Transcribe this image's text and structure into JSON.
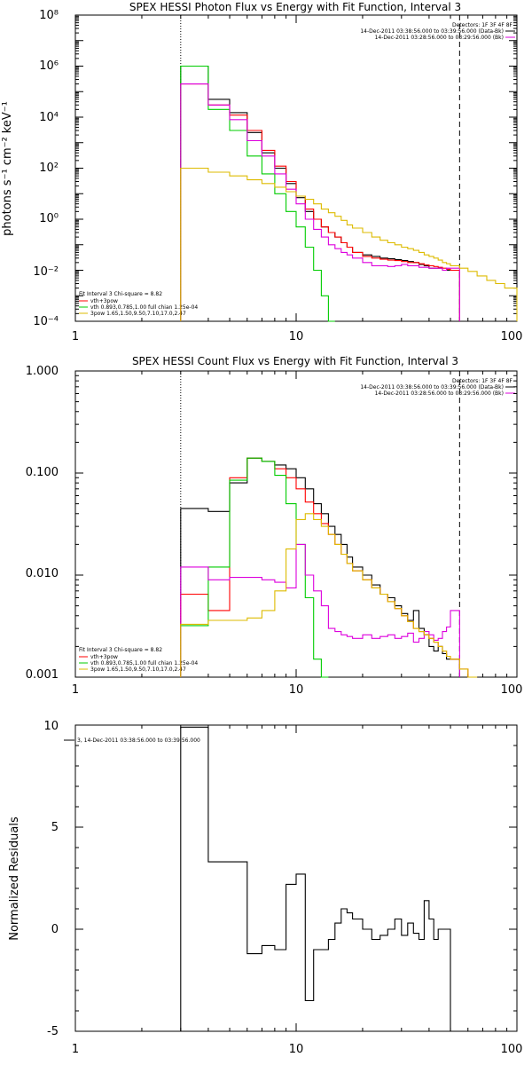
{
  "chart_data": [
    {
      "type": "line",
      "title": "SPEX HESSI Photon Flux vs Energy with Fit Function, Interval 3",
      "ylabel": "photons s⁻¹ cm⁻² keV⁻¹",
      "xlabel": "",
      "xscale": "log",
      "yscale": "log",
      "xlim": [
        1,
        100
      ],
      "ylim": [
        0.0001,
        100000000
      ],
      "x_tick_labels": [
        "1",
        "10",
        "100"
      ],
      "y_tick_labels": [
        "10⁻⁴",
        "10⁻²",
        "10⁰",
        "10²",
        "10⁴",
        "10⁶",
        "10⁸"
      ],
      "vlines": [
        {
          "x": 3,
          "style": "dotted"
        },
        {
          "x": 55,
          "style": "dashed"
        }
      ],
      "header_text": [
        "Detectors: 1F 3F 4F 8F",
        "14-Dec-2011 03:38:56.000 to 03:39:56.000 (Data-Bk)",
        "14-Dec-2011 03:28:56.000 to 03:29:56.000 (Bk)"
      ],
      "legend_text": [
        "Fit Interval 3   Chi-square = 8.82",
        "vth+3pow",
        "vth 0.893,0.785,1.00  full chian 1.25e-04",
        "3pow 1.65,1.50,9.50,7.10,17.0,2.47"
      ],
      "bin_edges": [
        3,
        4,
        5,
        6,
        7,
        8,
        9,
        10,
        11,
        12,
        13,
        14,
        15,
        16,
        17,
        18,
        20,
        22,
        24,
        26,
        28,
        30,
        32,
        34,
        36,
        38,
        40,
        42,
        44,
        46,
        48,
        50,
        55,
        60,
        66,
        73,
        80,
        88,
        100
      ],
      "series": [
        {
          "color": "#000000",
          "values": [
            1000000,
            50000,
            15000,
            2500,
            400,
            100,
            25,
            7,
            2,
            1,
            0.5,
            0.3,
            0.2,
            0.12,
            0.08,
            0.05,
            0.04,
            0.035,
            0.03,
            0.028,
            0.026,
            0.024,
            0.022,
            0.02,
            0.017,
            0.015,
            0.012,
            0.012,
            0.012,
            0.01,
            0.01,
            0.01
          ]
        },
        {
          "color": "#ff0000",
          "values": [
            200000,
            30000,
            12000,
            3000,
            500,
            120,
            30,
            8,
            2.5,
            1,
            0.5,
            0.3,
            0.2,
            0.12,
            0.08,
            0.05,
            0.035,
            0.03,
            0.027,
            0.025,
            0.024,
            0.022,
            0.02,
            0.02,
            0.018,
            0.016,
            0.015,
            0.014,
            0.013,
            0.012,
            0.011,
            0.01
          ]
        },
        {
          "color": "#00cc00",
          "values": [
            1000000,
            20000,
            3000,
            300,
            60,
            10,
            2,
            0.5,
            0.08,
            0.01,
            0.001,
            0.0001
          ]
        },
        {
          "color": "#dd00dd",
          "values": [
            200000,
            30000,
            8000,
            1200,
            300,
            60,
            15,
            4,
            1,
            0.4,
            0.2,
            0.1,
            0.07,
            0.05,
            0.04,
            0.03,
            0.02,
            0.015,
            0.015,
            0.014,
            0.015,
            0.017,
            0.015,
            0.015,
            0.013,
            0.013,
            0.012,
            0.012,
            0.012,
            0.01,
            0.012,
            0.012
          ]
        },
        {
          "color": "#ddbb00",
          "values": [
            100,
            70,
            50,
            35,
            25,
            18,
            12,
            8,
            6,
            4,
            2.5,
            1.8,
            1.3,
            0.9,
            0.6,
            0.45,
            0.3,
            0.2,
            0.15,
            0.12,
            0.1,
            0.08,
            0.07,
            0.06,
            0.05,
            0.04,
            0.035,
            0.03,
            0.025,
            0.02,
            0.018,
            0.015,
            0.012,
            0.009,
            0.006,
            0.004,
            0.003,
            0.002
          ]
        }
      ]
    },
    {
      "type": "line",
      "title": "SPEX HESSI Count Flux vs Energy with Fit Function, Interval 3",
      "ylabel": "",
      "xlabel": "",
      "xscale": "log",
      "yscale": "log",
      "xlim": [
        1,
        100
      ],
      "ylim": [
        0.001,
        1
      ],
      "x_tick_labels": [
        "1",
        "10",
        "100"
      ],
      "y_tick_labels": [
        "0.001",
        "0.010",
        "0.100",
        "1.000"
      ],
      "vlines": [
        {
          "x": 3,
          "style": "dotted"
        },
        {
          "x": 55,
          "style": "dashed"
        }
      ],
      "header_text": [
        "Detectors: 1F 3F 4F 8F",
        "14-Dec-2011 03:38:56.000 to 03:39:56.000 (Data-Bk)",
        "14-Dec-2011 03:28:56.000 to 03:29:56.000 (Bk)"
      ],
      "legend_text": [
        "Fit Interval 3   Chi-square = 8.82",
        "vth+3pow",
        "vth 0.893,0.785,1.00  full chian 1.25e-04",
        "3pow 1.65,1.50,9.50,7.10,17.0,2.47"
      ],
      "bin_edges": [
        3,
        4,
        5,
        6,
        7,
        8,
        9,
        10,
        11,
        12,
        13,
        14,
        15,
        16,
        17,
        18,
        20,
        22,
        24,
        26,
        28,
        30,
        32,
        34,
        36,
        38,
        40,
        42,
        44,
        46,
        48,
        50,
        55,
        60,
        66
      ],
      "series": [
        {
          "color": "#000000",
          "values": [
            0.045,
            0.042,
            0.08,
            0.14,
            0.13,
            0.12,
            0.11,
            0.09,
            0.07,
            0.05,
            0.04,
            0.03,
            0.025,
            0.02,
            0.015,
            0.012,
            0.01,
            0.008,
            0.0065,
            0.006,
            0.005,
            0.0042,
            0.0036,
            0.0045,
            0.003,
            0.0026,
            0.002,
            0.0018,
            0.002,
            0.0017,
            0.0015,
            0.0015
          ]
        },
        {
          "color": "#ff0000",
          "values": [
            0.0065,
            0.0045,
            0.09,
            0.14,
            0.13,
            0.11,
            0.09,
            0.07,
            0.052,
            0.04,
            0.032,
            0.025,
            0.02,
            0.016,
            0.013,
            0.011,
            0.009,
            0.0075,
            0.0065,
            0.0055,
            0.0047,
            0.004,
            0.0035,
            0.003,
            0.0028,
            0.0026,
            0.0024,
            0.0022,
            0.002,
            0.0018,
            0.0016,
            0.0015,
            0.0012,
            0.001
          ]
        },
        {
          "color": "#00cc00",
          "values": [
            0.0032,
            0.012,
            0.085,
            0.14,
            0.13,
            0.095,
            0.05,
            0.02,
            0.006,
            0.0015,
            0.0005
          ]
        },
        {
          "color": "#dd00dd",
          "values": [
            0.012,
            0.009,
            0.0095,
            0.0095,
            0.009,
            0.0085,
            0.0075,
            0.02,
            0.01,
            0.007,
            0.005,
            0.003,
            0.0028,
            0.0026,
            0.0025,
            0.0024,
            0.0026,
            0.0024,
            0.0025,
            0.0026,
            0.0024,
            0.0025,
            0.0027,
            0.0022,
            0.0024,
            0.0028,
            0.0026,
            0.0023,
            0.0024,
            0.0028,
            0.0031,
            0.0045
          ]
        },
        {
          "color": "#ddbb00",
          "values": [
            0.0033,
            0.0036,
            0.0036,
            0.0038,
            0.0045,
            0.007,
            0.018,
            0.035,
            0.04,
            0.035,
            0.03,
            0.025,
            0.02,
            0.016,
            0.013,
            0.011,
            0.009,
            0.0075,
            0.0065,
            0.0055,
            0.0047,
            0.004,
            0.0035,
            0.003,
            0.0028,
            0.0026,
            0.0024,
            0.0022,
            0.002,
            0.0018,
            0.0016,
            0.0015,
            0.0012,
            0.001
          ]
        }
      ]
    },
    {
      "type": "line",
      "title": "",
      "ylabel": "Normalized Residuals",
      "xlabel": "",
      "xscale": "log",
      "yscale": "linear",
      "xlim": [
        1,
        100
      ],
      "ylim": [
        -5,
        10
      ],
      "x_tick_labels": [
        "1",
        "10",
        "100"
      ],
      "y_tick_labels": [
        "-5",
        "0",
        "5",
        "10"
      ],
      "legend_text": [
        "3, 14-Dec-2011 03:38:56.000 to 03:39:56.000"
      ],
      "bin_edges": [
        3,
        4,
        5,
        6,
        7,
        8,
        9,
        10,
        11,
        12,
        13,
        14,
        15,
        16,
        17,
        18,
        20,
        22,
        24,
        26,
        28,
        30,
        32,
        34,
        36,
        38,
        40,
        42,
        44,
        46,
        48,
        50,
        55
      ],
      "series": [
        {
          "color": "#000000",
          "values": [
            9.9,
            3.3,
            3.3,
            -1.2,
            -0.8,
            -1.0,
            2.2,
            2.7,
            -3.5,
            -1.0,
            -1.0,
            -0.5,
            0.3,
            1.0,
            0.8,
            0.5,
            0,
            -0.5,
            -0.3,
            0,
            0.5,
            -0.3,
            0.3,
            -0.2,
            -0.5,
            1.4,
            0.5,
            -0.5,
            0,
            0,
            0
          ]
        }
      ]
    }
  ]
}
